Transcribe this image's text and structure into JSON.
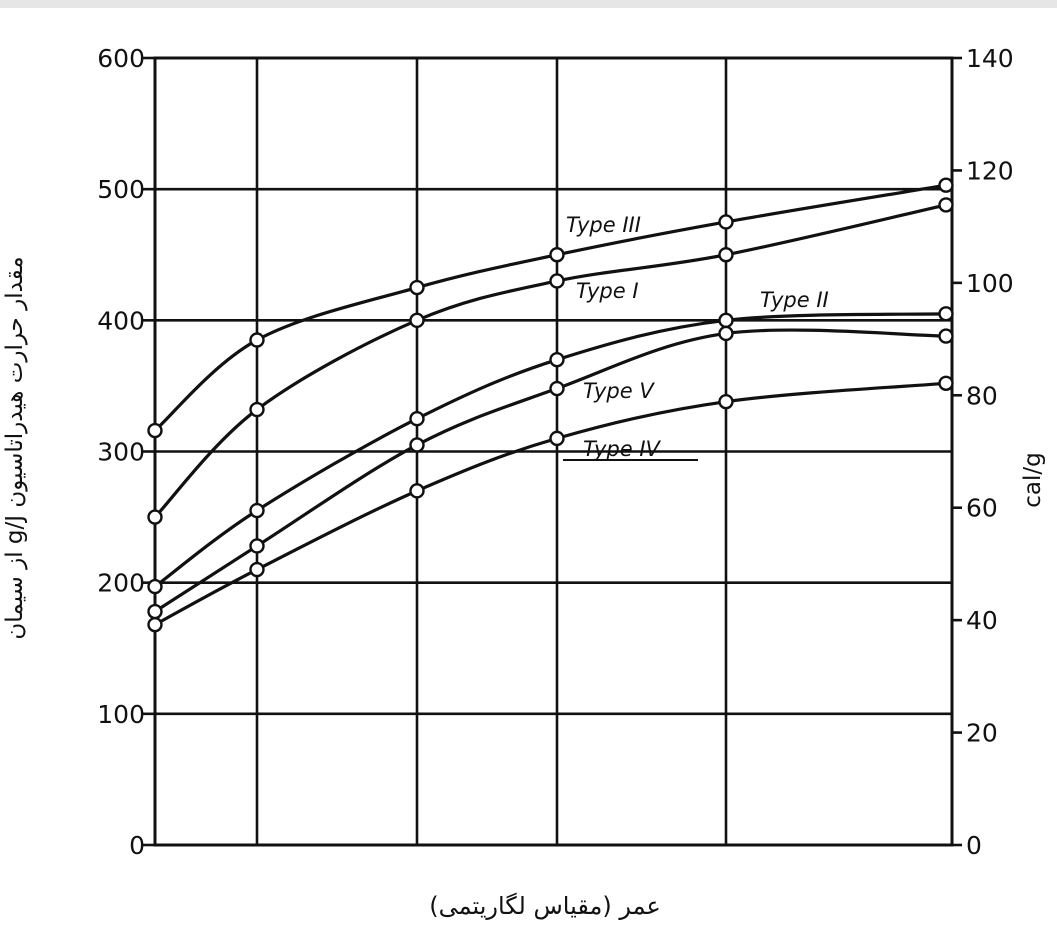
{
  "chart_data": {
    "type": "line",
    "title": "",
    "xlabel": "عمر (مقیاس لگاریتمی)",
    "ylabel": "مقدار حرارت هیدراتاسیون g/J از سیمان",
    "ylabel_right": "cal/g",
    "x_scale": "logarithmic",
    "x_unlabeled_gridlines": 6,
    "ylim": [
      0,
      600
    ],
    "yticks": [
      "0",
      "100",
      "200",
      "300",
      "400",
      "500",
      "600"
    ],
    "ylim_right": [
      0,
      140
    ],
    "yticks_right": [
      "0",
      "20",
      "40",
      "60",
      "80",
      "100",
      "120",
      "140"
    ],
    "grid": true,
    "x": [
      1,
      2,
      3,
      4,
      5,
      6
    ],
    "series": [
      {
        "name": "Type III",
        "values": [
          316,
          385,
          425,
          450,
          475,
          503
        ]
      },
      {
        "name": "Type I",
        "values": [
          250,
          332,
          400,
          430,
          450,
          488
        ]
      },
      {
        "name": "Type II",
        "values": [
          197,
          255,
          325,
          370,
          400,
          405
        ]
      },
      {
        "name": "Type V",
        "values": [
          178,
          228,
          305,
          348,
          390,
          388
        ]
      },
      {
        "name": "Type IV",
        "values": [
          168,
          210,
          270,
          310,
          338,
          352
        ]
      }
    ]
  },
  "colors": {
    "ink": "#111111",
    "background": "#ffffff"
  }
}
